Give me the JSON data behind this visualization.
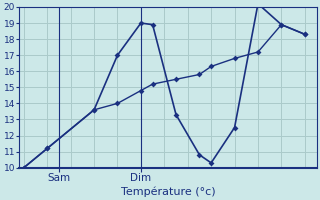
{
  "background_color": "#cce8e8",
  "grid_color": "#aacaca",
  "line_color": "#1a3080",
  "xlabel": "Température (°c)",
  "ylim": [
    10,
    20
  ],
  "yticks": [
    10,
    11,
    12,
    13,
    14,
    15,
    16,
    17,
    18,
    19,
    20
  ],
  "line1_x": [
    0,
    1,
    3,
    4,
    5,
    5.5,
    6.5,
    7.5,
    8,
    9,
    10,
    11,
    12
  ],
  "line1_y": [
    10,
    11.2,
    13.6,
    17.0,
    19.0,
    18.9,
    13.3,
    10.8,
    10.3,
    12.5,
    20.2,
    18.9,
    18.3
  ],
  "line2_x": [
    0,
    1,
    3,
    4,
    5,
    5.5,
    6.5,
    7.5,
    8,
    9,
    10,
    11,
    12
  ],
  "line2_y": [
    10,
    11.2,
    13.6,
    14.0,
    14.8,
    15.2,
    15.5,
    15.8,
    16.3,
    16.8,
    17.2,
    18.9,
    18.3
  ],
  "sam_x": 1.5,
  "dim_x": 5.0,
  "xlim": [
    -0.2,
    12.5
  ],
  "xtick_positions": [
    1.5,
    5.0
  ],
  "xtick_labels": [
    "Sam",
    "Dim"
  ]
}
